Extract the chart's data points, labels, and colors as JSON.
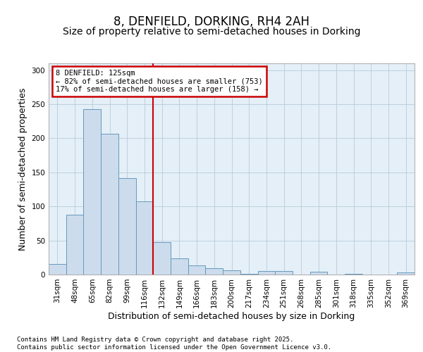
{
  "title": "8, DENFIELD, DORKING, RH4 2AH",
  "subtitle": "Size of property relative to semi-detached houses in Dorking",
  "xlabel": "Distribution of semi-detached houses by size in Dorking",
  "ylabel": "Number of semi-detached properties",
  "categories": [
    "31sqm",
    "48sqm",
    "65sqm",
    "82sqm",
    "99sqm",
    "116sqm",
    "132sqm",
    "149sqm",
    "166sqm",
    "183sqm",
    "200sqm",
    "217sqm",
    "234sqm",
    "251sqm",
    "268sqm",
    "285sqm",
    "301sqm",
    "318sqm",
    "335sqm",
    "352sqm",
    "369sqm"
  ],
  "values": [
    16,
    88,
    243,
    207,
    142,
    107,
    48,
    24,
    13,
    9,
    6,
    1,
    5,
    5,
    0,
    4,
    0,
    1,
    0,
    0,
    3
  ],
  "bar_color": "#ccdcec",
  "bar_edge_color": "#6699bb",
  "vline_color": "#cc0000",
  "vline_x": 5.5,
  "annotation_line1": "8 DENFIELD: 125sqm",
  "annotation_line2": "← 82% of semi-detached houses are smaller (753)",
  "annotation_line3": "17% of semi-detached houses are larger (158) →",
  "annotation_box_color": "#cc0000",
  "annotation_bg": "white",
  "ylim": [
    0,
    310
  ],
  "yticks": [
    0,
    50,
    100,
    150,
    200,
    250,
    300
  ],
  "grid_color": "#b8ccd8",
  "background_color": "#e4eff8",
  "footer": "Contains HM Land Registry data © Crown copyright and database right 2025.\nContains public sector information licensed under the Open Government Licence v3.0.",
  "title_fontsize": 12,
  "subtitle_fontsize": 10,
  "axis_label_fontsize": 9,
  "tick_fontsize": 7.5,
  "footer_fontsize": 6.5
}
